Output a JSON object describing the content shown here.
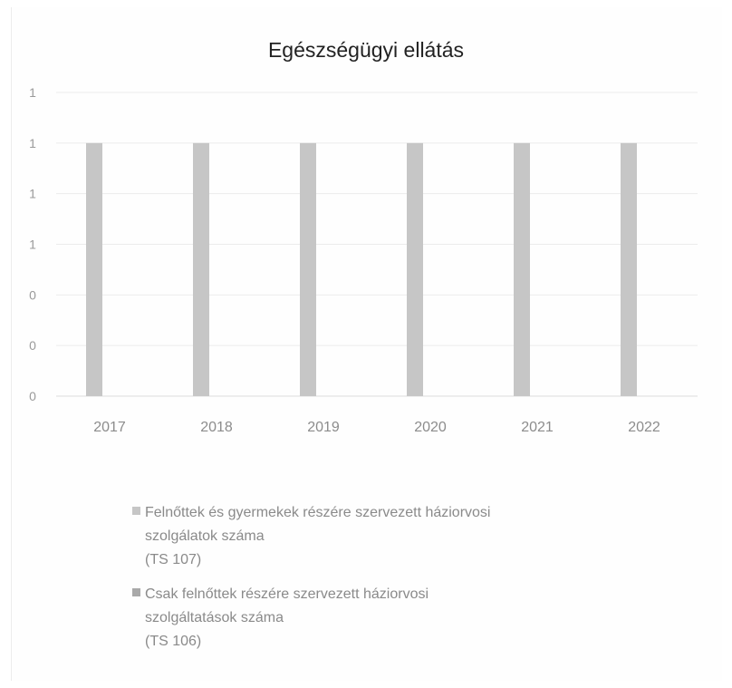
{
  "chart_data": {
    "type": "bar",
    "title": "Egészségügyi ellátás",
    "xlabel": "",
    "ylabel": "",
    "categories": [
      "2017",
      "2018",
      "2019",
      "2020",
      "2021",
      "2022"
    ],
    "y_tick_labels": [
      "0",
      "0",
      "0",
      "1",
      "1",
      "1",
      "1"
    ],
    "ylim": [
      0,
      1.2
    ],
    "grid": true,
    "legend_position": "bottom",
    "series": [
      {
        "name_lines": [
          "Felnőttek és gyermekek részére szervezett háziorvosi",
          "szolgálatok száma",
          "(TS 107)"
        ],
        "values": [
          1,
          1,
          1,
          1,
          1,
          1
        ],
        "color": "#c6c6c6"
      },
      {
        "name_lines": [
          "Csak felnőttek részére szervezett háziorvosi",
          "szolgáltatások száma",
          "(TS 106)"
        ],
        "values": [
          0,
          0,
          0,
          0,
          0,
          0
        ],
        "color": "#a9a9a9"
      }
    ]
  }
}
